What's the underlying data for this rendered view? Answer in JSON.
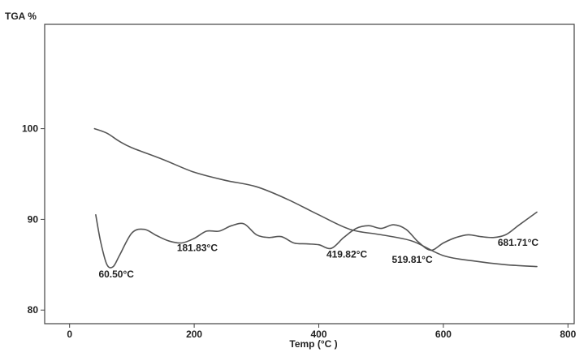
{
  "chart_data": {
    "type": "line",
    "ylabel": "TGA %",
    "xlabel": "Temp (°C )",
    "xlim": [
      -40,
      810
    ],
    "ylim": [
      78.5,
      111.5
    ],
    "x_ticks": [
      0,
      200,
      400,
      600,
      800
    ],
    "y_ticks": [
      80,
      90,
      100
    ],
    "grid": false,
    "series": [
      {
        "name": "",
        "x": [
          40,
          60,
          80,
          100,
          150,
          200,
          250,
          300,
          350,
          400,
          450,
          500,
          550,
          600,
          650,
          700,
          750
        ],
        "y": [
          100,
          99.5,
          98.6,
          97.9,
          96.6,
          95.2,
          94.3,
          93.6,
          92.2,
          90.5,
          88.9,
          88.3,
          87.6,
          86.0,
          85.4,
          85.0,
          84.8
        ]
      },
      {
        "name": "",
        "x": [
          42,
          50,
          60,
          70,
          80,
          100,
          120,
          140,
          160,
          180,
          200,
          220,
          240,
          260,
          280,
          300,
          320,
          340,
          360,
          380,
          400,
          420,
          440,
          460,
          480,
          500,
          520,
          540,
          560,
          580,
          600,
          620,
          640,
          660,
          680,
          700,
          720,
          750
        ],
        "y": [
          90.5,
          87.5,
          85.0,
          84.8,
          86.0,
          88.5,
          88.9,
          88.2,
          87.6,
          87.4,
          87.9,
          88.7,
          88.7,
          89.3,
          89.5,
          88.3,
          88.0,
          88.1,
          87.4,
          87.3,
          87.2,
          86.8,
          88.0,
          89.0,
          89.3,
          89.0,
          89.4,
          88.9,
          87.5,
          86.6,
          87.4,
          88.0,
          88.3,
          88.1,
          88.0,
          88.3,
          89.3,
          90.8
        ]
      }
    ],
    "annotations": [
      {
        "text": "60.50°C",
        "x": 75,
        "y": 83.6
      },
      {
        "text": "181.83°C",
        "x": 205,
        "y": 86.5
      },
      {
        "text": "419.82°C",
        "x": 445,
        "y": 85.8
      },
      {
        "text": "519.81°C",
        "x": 550,
        "y": 85.2
      },
      {
        "text": "681.71°C",
        "x": 720,
        "y": 87.1
      }
    ]
  }
}
